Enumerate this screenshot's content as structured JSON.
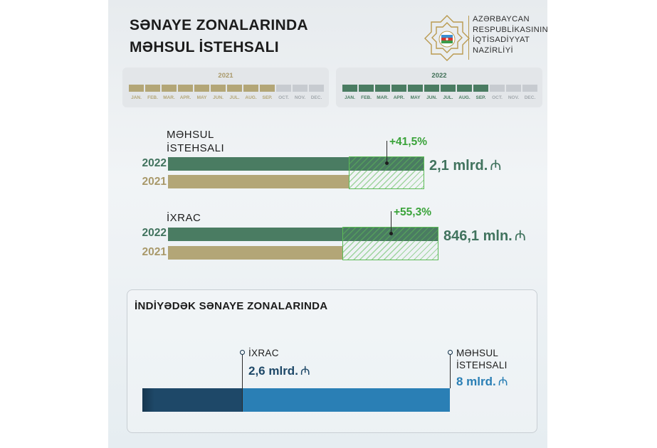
{
  "header": {
    "title_line1": "SƏNAYE ZONALARINDA",
    "title_line2": "MƏHSUL İSTEHSALI"
  },
  "ministry": {
    "line1": "AZƏRBAYCAN",
    "line2": "RESPUBLİKASININ",
    "line3": "İQTİSADİYYAT",
    "line4": "NAZİRLİYİ",
    "logo_icon": "ministry-emblem-icon"
  },
  "timelines": [
    {
      "year": "2021",
      "active_months": 9,
      "color": "#b3a677",
      "inactive_color": "#c7cbd0"
    },
    {
      "year": "2022",
      "active_months": 9,
      "color": "#4a7c62",
      "inactive_color": "#c7cbd0"
    }
  ],
  "months": [
    "JAN.",
    "FEB.",
    "MAR.",
    "APR.",
    "MAY",
    "JUN.",
    "JUL.",
    "AUG.",
    "SEP.",
    "OCT.",
    "NOV.",
    "DEC."
  ],
  "chart_data": [
    {
      "type": "bar",
      "orientation": "horizontal",
      "title": "MƏHSUL İSTEHSALI",
      "categories": [
        "2022",
        "2021"
      ],
      "values": [
        2.1,
        1.484
      ],
      "unit": "mlrd.",
      "increase": "+41,5%",
      "total_label": "2,1 mlrd.",
      "colors": [
        "#4a7c62",
        "#b3a677"
      ]
    },
    {
      "type": "bar",
      "orientation": "horizontal",
      "title": "İXRAC",
      "categories": [
        "2022",
        "2021"
      ],
      "values": [
        846.1,
        544.8
      ],
      "unit": "mln.",
      "increase": "+55,3%",
      "total_label": "846,1 mln.",
      "colors": [
        "#4a7c62",
        "#b3a677"
      ]
    },
    {
      "type": "bar",
      "orientation": "horizontal",
      "title": "İNDİYƏDƏK SƏNAYE ZONALARINDA",
      "series": [
        {
          "name": "İXRAC",
          "value": 2.6,
          "value_label": "2,6 mlrd.",
          "color": "#1e4868"
        },
        {
          "name": "MƏHSUL İSTEHSALI",
          "value": 8,
          "value_label": "8 mlrd.",
          "color": "#2a7fb5"
        }
      ],
      "unit": "mlrd."
    }
  ],
  "labels": {
    "production_line1": "MƏHSUL",
    "production_line2": "İSTEHSALI",
    "export": "İXRAC",
    "year_2022": "2022",
    "year_2021": "2021",
    "panel_title": "İNDİYƏDƏK SƏNAYE ZONALARINDA",
    "cum_export": "İXRAC",
    "cum_export_val": "2,6 mlrd.",
    "cum_prod_line1": "MƏHSUL",
    "cum_prod_line2": "İSTEHSALI",
    "cum_prod_val": "8 mlrd.",
    "currency_icon": "manat-icon"
  }
}
